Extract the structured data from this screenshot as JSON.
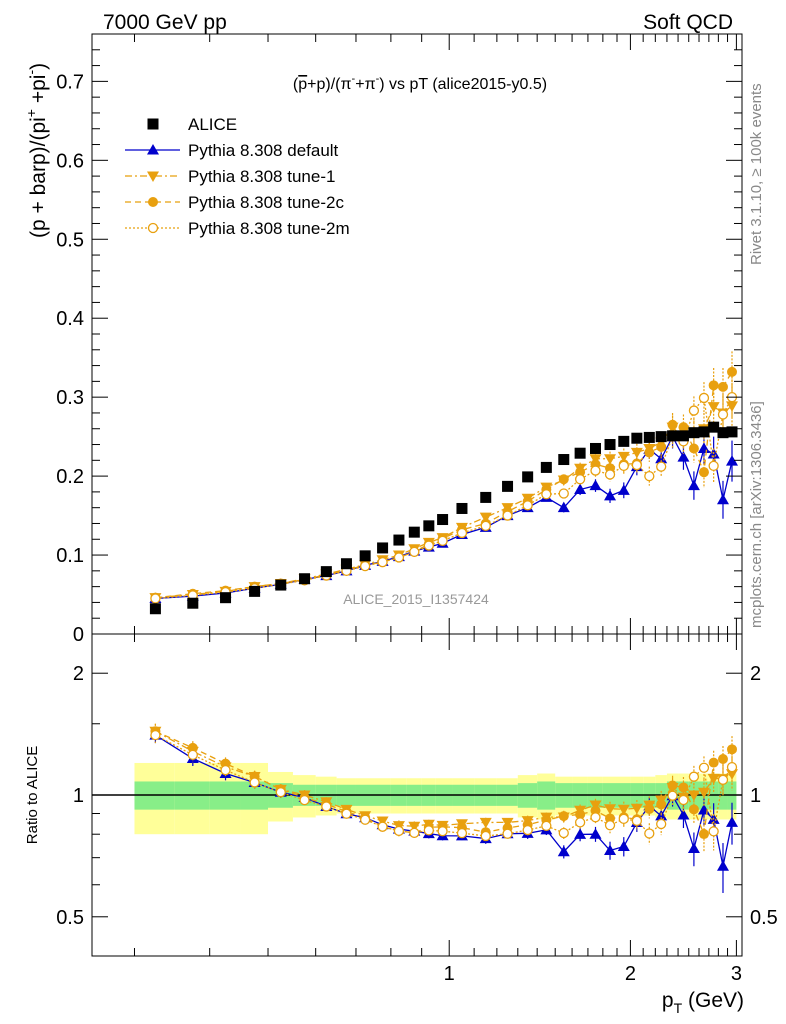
{
  "header": {
    "left": "7000 GeV pp",
    "right": "Soft QCD"
  },
  "side": {
    "rivet": "Rivet 3.1.10, ≥ 100k events",
    "mcplots": "mcplots.cern.ch [arXiv:1306.3436]"
  },
  "analysis_id": "ALICE_2015_I1357424",
  "title_parts": {
    "p1": "(",
    "p2": "p",
    "p3": "+p)/(π",
    "p4": "-",
    "p5": "+π",
    "p6": "-",
    "p7": ") vs pT (alice2015-y0.5)"
  },
  "ylabel_parts": {
    "a": "(p + barp)/(pi",
    "b": "+",
    "c": " +pi",
    "d": "-",
    "e": ")"
  },
  "xlabel_parts": {
    "p": "p",
    "t": "T",
    "rest": " (GeV)"
  },
  "ratio_ylabel": "Ratio to ALICE",
  "legend": [
    {
      "label": "ALICE",
      "color": "#000000",
      "marker": "square-filled",
      "line": "none"
    },
    {
      "label": "Pythia 8.308 default",
      "color": "#0000cc",
      "marker": "triangle-up",
      "line": "solid"
    },
    {
      "label": "Pythia 8.308 tune-1",
      "color": "#e8a00f",
      "marker": "triangle-down",
      "line": "dashdot"
    },
    {
      "label": "Pythia 8.308 tune-2c",
      "color": "#e8a00f",
      "marker": "circle-filled",
      "line": "dashed"
    },
    {
      "label": "Pythia 8.308 tune-2m",
      "color": "#e8a00f",
      "marker": "circle-open",
      "line": "dotted"
    }
  ],
  "chart_data": {
    "type": "scatter",
    "x": [
      0.325,
      0.375,
      0.425,
      0.475,
      0.525,
      0.575,
      0.625,
      0.675,
      0.725,
      0.775,
      0.825,
      0.875,
      0.925,
      0.975,
      1.05,
      1.15,
      1.25,
      1.35,
      1.45,
      1.55,
      1.65,
      1.75,
      1.85,
      1.95,
      2.05,
      2.15,
      2.25,
      2.35,
      2.45,
      2.55,
      2.65,
      2.75,
      2.85,
      2.95
    ],
    "xlim": [
      0.255,
      3.065
    ],
    "x_log": true,
    "x_major_ticks": [
      1,
      2,
      3
    ],
    "top": {
      "ylim": [
        0,
        0.76
      ],
      "y_ticks": [
        0,
        0.1,
        0.2,
        0.3,
        0.4,
        0.5,
        0.6,
        0.7
      ],
      "y_tick_labels": [
        "0",
        "0.1",
        "0.2",
        "0.3",
        "0.4",
        "0.5",
        "0.6",
        "0.7"
      ]
    },
    "ratio": {
      "ylim": [
        0.4,
        2.5
      ],
      "y_log": true,
      "y_ticks": [
        0.5,
        1,
        2
      ],
      "y_tick_labels": [
        "0.5",
        "1",
        "2"
      ],
      "band_inner": [
        0.08,
        0.08,
        0.08,
        0.08,
        0.07,
        0.06,
        0.06,
        0.06,
        0.06,
        0.06,
        0.06,
        0.06,
        0.06,
        0.06,
        0.06,
        0.06,
        0.06,
        0.07,
        0.08,
        0.07,
        0.07,
        0.07,
        0.07,
        0.07,
        0.07,
        0.07,
        0.07,
        0.08,
        0.08,
        0.08,
        0.08,
        0.08,
        0.08,
        0.08
      ],
      "band_outer": [
        0.2,
        0.2,
        0.2,
        0.2,
        0.14,
        0.12,
        0.11,
        0.1,
        0.1,
        0.1,
        0.1,
        0.1,
        0.1,
        0.1,
        0.1,
        0.1,
        0.1,
        0.12,
        0.13,
        0.11,
        0.11,
        0.11,
        0.11,
        0.11,
        0.11,
        0.11,
        0.12,
        0.13,
        0.13,
        0.13,
        0.13,
        0.13,
        0.13,
        0.13
      ]
    },
    "series": [
      {
        "name": "ALICE",
        "color": "#000000",
        "marker": "square-filled",
        "line": "none",
        "values": [
          0.032,
          0.039,
          0.046,
          0.054,
          0.062,
          0.07,
          0.079,
          0.089,
          0.099,
          0.109,
          0.119,
          0.129,
          0.137,
          0.145,
          0.159,
          0.173,
          0.187,
          0.199,
          0.211,
          0.221,
          0.229,
          0.235,
          0.24,
          0.244,
          0.248,
          0.249,
          0.25,
          0.251,
          0.251,
          0.255,
          0.256,
          0.262,
          0.255,
          0.256
        ],
        "errors": [
          0.001,
          0.001,
          0.001,
          0.001,
          0.001,
          0.001,
          0.001,
          0.001,
          0.001,
          0.001,
          0.001,
          0.001,
          0.001,
          0.001,
          0.001,
          0.001,
          0.001,
          0.001,
          0.001,
          0.001,
          0.001,
          0.001,
          0.001,
          0.001,
          0.001,
          0.001,
          0.001,
          0.001,
          0.001,
          0.002,
          0.002,
          0.002,
          0.002,
          0.002
        ]
      },
      {
        "name": "Pythia 8.308 default",
        "color": "#0000cc",
        "marker": "triangle-up",
        "line": "solid",
        "values": [
          0.045,
          0.048,
          0.052,
          0.058,
          0.063,
          0.069,
          0.074,
          0.08,
          0.087,
          0.092,
          0.098,
          0.105,
          0.11,
          0.115,
          0.126,
          0.135,
          0.15,
          0.16,
          0.173,
          0.16,
          0.183,
          0.188,
          0.175,
          0.182,
          0.212,
          0.234,
          0.222,
          0.25,
          0.224,
          0.188,
          0.235,
          0.228,
          0.17,
          0.219
        ],
        "errors": [
          0.002,
          0.002,
          0.002,
          0.002,
          0.002,
          0.002,
          0.002,
          0.002,
          0.002,
          0.002,
          0.003,
          0.003,
          0.003,
          0.003,
          0.003,
          0.004,
          0.004,
          0.005,
          0.005,
          0.006,
          0.007,
          0.008,
          0.009,
          0.01,
          0.011,
          0.012,
          0.013,
          0.015,
          0.016,
          0.018,
          0.02,
          0.022,
          0.024,
          0.026
        ]
      },
      {
        "name": "Pythia 8.308 tune-1",
        "color": "#e8a00f",
        "marker": "triangle-down",
        "line": "dashdot",
        "values": [
          0.046,
          0.05,
          0.054,
          0.06,
          0.064,
          0.07,
          0.076,
          0.082,
          0.088,
          0.094,
          0.1,
          0.108,
          0.116,
          0.122,
          0.135,
          0.148,
          0.16,
          0.172,
          0.186,
          0.195,
          0.21,
          0.222,
          0.222,
          0.225,
          0.23,
          0.235,
          0.243,
          0.262,
          0.248,
          0.255,
          0.26,
          0.288,
          0.28,
          0.289
        ],
        "errors": [
          0.002,
          0.002,
          0.002,
          0.002,
          0.002,
          0.002,
          0.002,
          0.002,
          0.002,
          0.002,
          0.003,
          0.003,
          0.003,
          0.003,
          0.003,
          0.004,
          0.004,
          0.005,
          0.005,
          0.006,
          0.007,
          0.008,
          0.009,
          0.01,
          0.011,
          0.012,
          0.013,
          0.015,
          0.016,
          0.018,
          0.02,
          0.022,
          0.024,
          0.026
        ]
      },
      {
        "name": "Pythia 8.308 tune-2c",
        "color": "#e8a00f",
        "marker": "circle-filled",
        "line": "dashed",
        "values": [
          0.046,
          0.051,
          0.055,
          0.06,
          0.064,
          0.069,
          0.075,
          0.081,
          0.087,
          0.091,
          0.097,
          0.104,
          0.114,
          0.121,
          0.132,
          0.14,
          0.155,
          0.168,
          0.183,
          0.196,
          0.205,
          0.215,
          0.21,
          0.215,
          0.216,
          0.23,
          0.237,
          0.265,
          0.262,
          0.235,
          0.205,
          0.315,
          0.313,
          0.332
        ],
        "errors": [
          0.002,
          0.002,
          0.002,
          0.002,
          0.002,
          0.002,
          0.002,
          0.002,
          0.002,
          0.002,
          0.003,
          0.003,
          0.003,
          0.003,
          0.003,
          0.004,
          0.004,
          0.005,
          0.005,
          0.006,
          0.007,
          0.008,
          0.009,
          0.01,
          0.011,
          0.012,
          0.013,
          0.015,
          0.016,
          0.018,
          0.02,
          0.022,
          0.024,
          0.026
        ]
      },
      {
        "name": "Pythia 8.308 tune-2m",
        "color": "#e8a00f",
        "marker": "circle-open",
        "line": "dotted",
        "values": [
          0.045,
          0.049,
          0.053,
          0.058,
          0.063,
          0.068,
          0.074,
          0.08,
          0.086,
          0.091,
          0.097,
          0.104,
          0.112,
          0.118,
          0.128,
          0.137,
          0.15,
          0.163,
          0.177,
          0.178,
          0.196,
          0.207,
          0.202,
          0.213,
          0.214,
          0.2,
          0.212,
          0.25,
          0.244,
          0.283,
          0.299,
          0.213,
          0.278,
          0.3
        ],
        "errors": [
          0.002,
          0.002,
          0.002,
          0.002,
          0.002,
          0.002,
          0.002,
          0.002,
          0.002,
          0.002,
          0.003,
          0.003,
          0.003,
          0.003,
          0.003,
          0.004,
          0.004,
          0.005,
          0.005,
          0.006,
          0.007,
          0.008,
          0.009,
          0.01,
          0.011,
          0.012,
          0.013,
          0.015,
          0.016,
          0.018,
          0.02,
          0.022,
          0.024,
          0.026
        ]
      }
    ]
  }
}
